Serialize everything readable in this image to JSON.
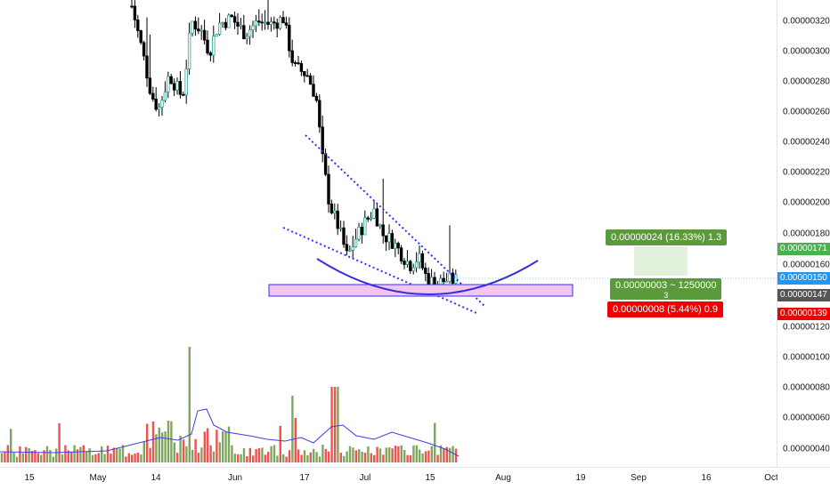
{
  "y_axis_ticks": [
    "0.00000320",
    "0.00000300",
    "0.00000280",
    "0.00000260",
    "0.00000240",
    "0.00000220",
    "0.00000200",
    "0.00000180",
    "0.00000160",
    "0.00000120",
    "0.00000100",
    "0.00000080",
    "0.00000060",
    "0.00000040"
  ],
  "x_axis_ticks": [
    "15",
    "May",
    "14",
    "Jun",
    "17",
    "Jul",
    "15",
    "Aug",
    "19",
    "Sep",
    "16",
    "Oct"
  ],
  "price_tags": {
    "target": "0.00000171",
    "current": "0.00000150",
    "entry": "0.00000147",
    "stop": "0.00000139"
  },
  "position_labels": {
    "profit": "0.00000024 (16.33%) 1.3",
    "middle": "0.00000003 ~ 1250000",
    "middle_sub": "3",
    "loss": "0.00000008 (5.44%) 0.9"
  },
  "colors": {
    "up": "#26a69a",
    "down": "#000000",
    "vol_up": "#7fa65d",
    "vol_down": "#ef5350",
    "current_tag": "#2196f3",
    "target_tag": "#4caf50",
    "entry_tag": "#555555",
    "stop_tag": "#f00000",
    "zone_fill": "#f3c6f0",
    "zone_border": "#2f2fff",
    "curve": "#3a2fd6"
  }
}
